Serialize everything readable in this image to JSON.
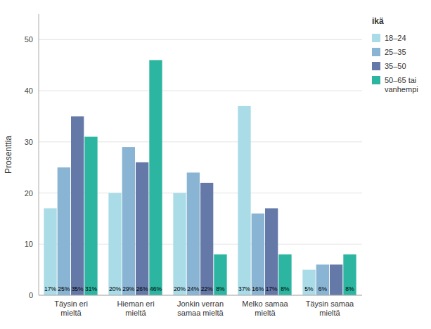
{
  "chart_data": {
    "type": "bar",
    "categories": [
      "Täysin eri\nmieltä",
      "Hieman eri\nmieltä",
      "Jonkin verran\nsamaa mieltä",
      "Melko samaa\nmieltä",
      "Täysin samaa\nmieltä"
    ],
    "series": [
      {
        "name": "18–24",
        "color": "#aadce8",
        "values": [
          17,
          20,
          20,
          37,
          5
        ],
        "value_labels": [
          "17%",
          "20%",
          "20%",
          "37%",
          "5%"
        ]
      },
      {
        "name": "25–35",
        "color": "#8ab4d4",
        "values": [
          25,
          29,
          24,
          16,
          6
        ],
        "value_labels": [
          "25%",
          "29%",
          "24%",
          "16%",
          "6%"
        ]
      },
      {
        "name": "35–50",
        "color": "#6479a8",
        "values": [
          35,
          26,
          22,
          17,
          6
        ],
        "value_labels": [
          "35%",
          "26%",
          "22%",
          "17%",
          null
        ]
      },
      {
        "name": "50–65 tai\nvanhempi",
        "color": "#2cb5a0",
        "values": [
          31,
          46,
          8,
          8,
          8
        ],
        "value_labels": [
          "31%",
          "46%",
          "8%",
          "8%",
          "8%"
        ]
      }
    ],
    "ylabel": "Prosenttia",
    "legend_title": "ikä",
    "ylim": [
      0,
      55
    ],
    "yticks": [
      0,
      10,
      20,
      30,
      40,
      50
    ],
    "grid": true,
    "legend": "right",
    "data_labels": true
  }
}
